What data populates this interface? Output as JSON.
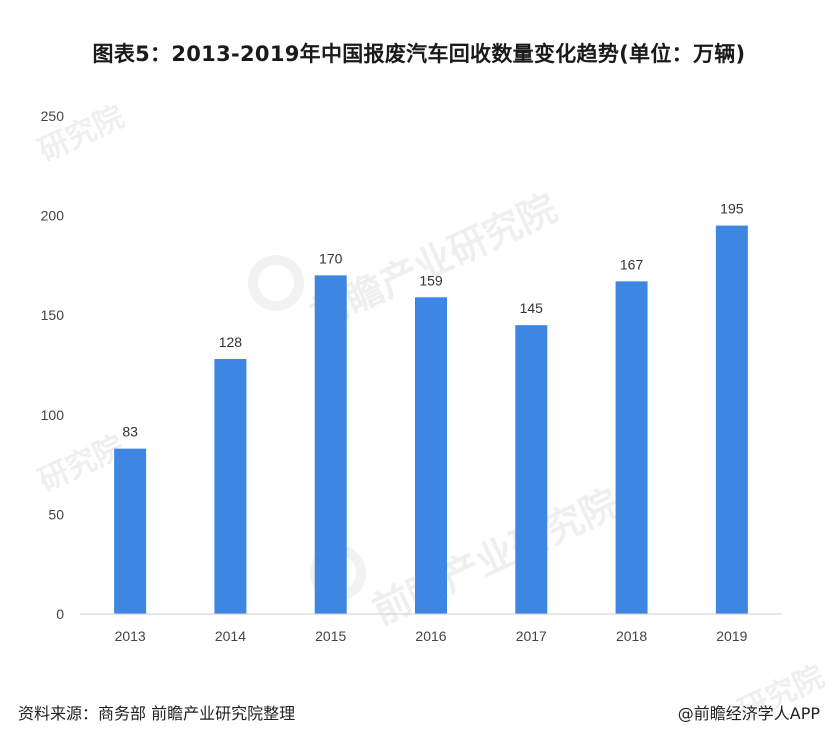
{
  "title": "图表5：2013-2019年中国报废汽车回收数量变化趋势(单位：万辆)",
  "footer": {
    "source": "资料来源：商务部 前瞻产业研究院整理",
    "credit": "@前瞻经济学人APP"
  },
  "watermark": {
    "text_a": "前瞻产业研究院",
    "text_b": "研究院"
  },
  "colors": {
    "bar": "#3d86e2",
    "axis": "#cfcfcf",
    "text": "#444444"
  },
  "chart_data": {
    "type": "bar",
    "title": "图表5：2013-2019年中国报废汽车回收数量变化趋势(单位：万辆)",
    "categories": [
      "2013",
      "2014",
      "2015",
      "2016",
      "2017",
      "2018",
      "2019"
    ],
    "values": [
      83,
      128,
      170,
      159,
      145,
      167,
      195
    ],
    "data_labels": [
      "83",
      "128",
      "170",
      "159",
      "145",
      "167",
      "195"
    ],
    "yticks": [
      "0",
      "50",
      "100",
      "150",
      "200",
      "250"
    ],
    "ylim": [
      0,
      250
    ],
    "xlabel": "",
    "ylabel": "",
    "grid": false,
    "legend": "none"
  }
}
